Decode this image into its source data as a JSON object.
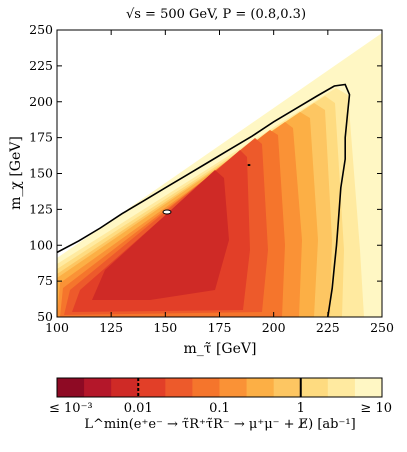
{
  "chart_data": {
    "type": "heatmap",
    "title": "√s = 500 GeV, P = (0.8,0.3)",
    "xlabel": "m_τ̃ [GeV]",
    "ylabel": "m_χ [GeV]",
    "xlim": [
      100,
      250
    ],
    "ylim": [
      50,
      250
    ],
    "x_ticks": [
      "100",
      "125",
      "150",
      "175",
      "200",
      "225",
      "250"
    ],
    "y_ticks": [
      "50",
      "75",
      "100",
      "125",
      "150",
      "175",
      "200",
      "225",
      "250"
    ],
    "colorbar": {
      "label": "L^min(e⁺e⁻ → τ̃R⁺τ̃R⁻ → μ⁺μ⁻ + E̸) [ab⁻¹]",
      "scale": "log",
      "range": [
        0.001,
        10
      ],
      "tick_labels": [
        "≤ 10⁻³",
        "0.01",
        "0.1",
        "1",
        "≥ 10"
      ],
      "colors": [
        "#8e0a24",
        "#b4172a",
        "#cf2a26",
        "#e23f28",
        "#ed5a2b",
        "#f5752c",
        "#fa9236",
        "#fcaf45",
        "#fdc662",
        "#fedb80",
        "#ffeaa0",
        "#fff7c4"
      ],
      "contour_lines": [
        {
          "value": 0.01,
          "style": "dashed"
        },
        {
          "value": 1,
          "style": "solid"
        }
      ]
    },
    "kinematic_region": {
      "lower_edge_y": 50,
      "upper_boundary": [
        [
          100,
          93
        ],
        [
          250,
          245
        ]
      ]
    },
    "contour_1": [
      [
        100,
        95
      ],
      [
        110,
        103
      ],
      [
        120,
        112
      ],
      [
        130,
        122
      ],
      [
        140,
        131
      ],
      [
        150,
        140
      ],
      [
        160,
        149
      ],
      [
        170,
        158
      ],
      [
        180,
        167
      ],
      [
        190,
        176
      ],
      [
        200,
        186
      ],
      [
        210,
        195
      ],
      [
        220,
        204
      ],
      [
        228,
        211
      ],
      [
        233,
        212
      ],
      [
        235,
        205
      ],
      [
        234,
        190
      ],
      [
        233,
        175
      ],
      [
        233,
        160
      ],
      [
        231,
        140
      ],
      [
        230,
        120
      ],
      [
        229,
        100
      ],
      [
        228,
        85
      ],
      [
        227,
        70
      ],
      [
        226,
        60
      ],
      [
        225,
        50
      ]
    ]
  }
}
